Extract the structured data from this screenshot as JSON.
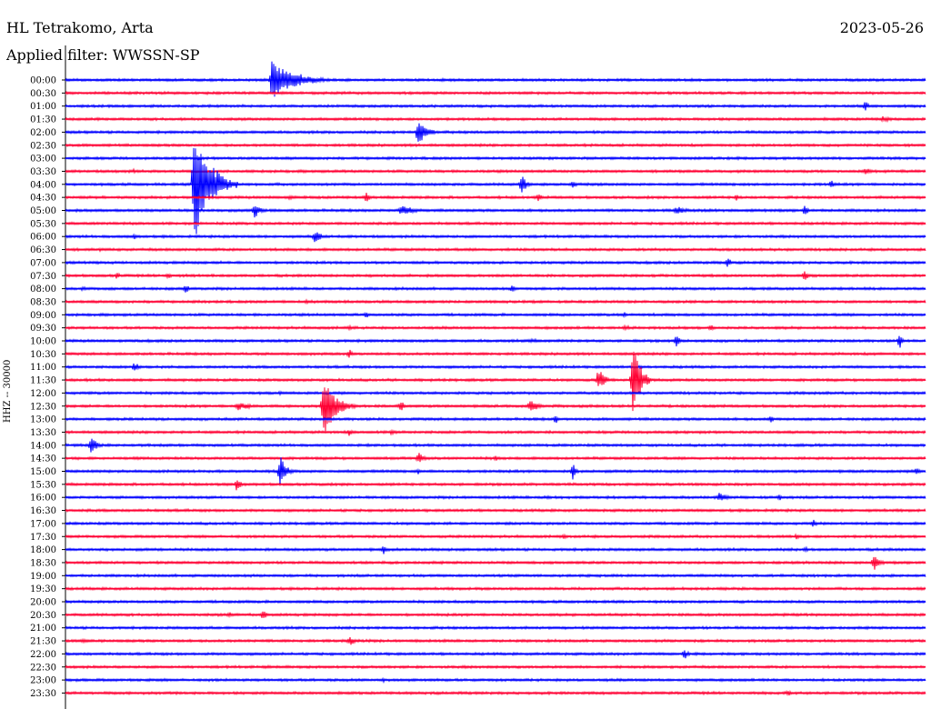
{
  "header": {
    "station": "HL Tetrakomo, Arta",
    "date": "2023-05-26",
    "filter": "Applied filter: WWSSN-SP"
  },
  "colors": {
    "blue": "#0000ff",
    "red": "#ff0033",
    "axis": "#000000"
  },
  "chart_data": {
    "type": "line",
    "title": "HL Tetrakomo, Arta",
    "subtitle": "Applied filter: WWSSN-SP",
    "ylabel": "HHZ -- 30000",
    "trace_duration_minutes": 30,
    "color_pattern": [
      "blue",
      "red"
    ],
    "y_tick_labels": [
      "00:00",
      "00:30",
      "01:00",
      "01:30",
      "02:00",
      "02:30",
      "03:00",
      "03:30",
      "04:00",
      "04:30",
      "05:00",
      "05:30",
      "06:00",
      "06:30",
      "07:00",
      "07:30",
      "08:00",
      "08:30",
      "09:00",
      "09:30",
      "10:00",
      "10:30",
      "11:00",
      "11:30",
      "12:00",
      "12:30",
      "13:00",
      "13:30",
      "14:00",
      "14:30",
      "15:00",
      "15:30",
      "16:00",
      "16:30",
      "17:00",
      "17:30",
      "18:00",
      "18:30",
      "19:00",
      "19:30",
      "20:00",
      "20:30",
      "21:00",
      "21:30",
      "22:00",
      "22:30",
      "23:00",
      "23:30"
    ],
    "events": [
      {
        "trace": "00:00",
        "t": 0.24,
        "amp": 28,
        "dur": 0.07,
        "dir": "up"
      },
      {
        "trace": "01:00",
        "t": 0.93,
        "amp": 8,
        "dur": 0.01
      },
      {
        "trace": "01:30",
        "t": 0.95,
        "amp": 4,
        "dur": 0.03
      },
      {
        "trace": "02:00",
        "t": 0.41,
        "amp": 18,
        "dur": 0.03
      },
      {
        "trace": "03:30",
        "t": 0.08,
        "amp": 3,
        "dur": 0.01
      },
      {
        "trace": "03:30",
        "t": 0.93,
        "amp": 5,
        "dur": 0.02
      },
      {
        "trace": "04:00",
        "t": 0.15,
        "amp": 80,
        "dur": 0.05,
        "dir": "big"
      },
      {
        "trace": "04:00",
        "t": 0.18,
        "amp": 12,
        "dur": 0.02
      },
      {
        "trace": "04:00",
        "t": 0.53,
        "amp": 12,
        "dur": 0.02
      },
      {
        "trace": "04:00",
        "t": 0.59,
        "amp": 6,
        "dur": 0.01
      },
      {
        "trace": "04:00",
        "t": 0.89,
        "amp": 6,
        "dur": 0.01
      },
      {
        "trace": "04:30",
        "t": 0.26,
        "amp": 3,
        "dur": 0.04
      },
      {
        "trace": "04:30",
        "t": 0.35,
        "amp": 8,
        "dur": 0.01
      },
      {
        "trace": "04:30",
        "t": 0.55,
        "amp": 6,
        "dur": 0.01
      },
      {
        "trace": "04:30",
        "t": 0.78,
        "amp": 5,
        "dur": 0.01
      },
      {
        "trace": "05:00",
        "t": 0.22,
        "amp": 10,
        "dur": 0.02
      },
      {
        "trace": "05:00",
        "t": 0.39,
        "amp": 8,
        "dur": 0.04
      },
      {
        "trace": "05:00",
        "t": 0.71,
        "amp": 6,
        "dur": 0.03
      },
      {
        "trace": "05:00",
        "t": 0.86,
        "amp": 8,
        "dur": 0.01
      },
      {
        "trace": "06:00",
        "t": 0.08,
        "amp": 4,
        "dur": 0.01
      },
      {
        "trace": "06:00",
        "t": 0.29,
        "amp": 9,
        "dur": 0.02
      },
      {
        "trace": "06:30",
        "t": 0.04,
        "amp": 2,
        "dur": 0.02
      },
      {
        "trace": "07:00",
        "t": 0.32,
        "amp": 3,
        "dur": 0.01
      },
      {
        "trace": "07:00",
        "t": 0.77,
        "amp": 8,
        "dur": 0.01
      },
      {
        "trace": "07:30",
        "t": 0.06,
        "amp": 5,
        "dur": 0.01
      },
      {
        "trace": "07:30",
        "t": 0.12,
        "amp": 5,
        "dur": 0.01
      },
      {
        "trace": "07:30",
        "t": 0.86,
        "amp": 9,
        "dur": 0.01
      },
      {
        "trace": "08:00",
        "t": 0.02,
        "amp": 3,
        "dur": 0.02
      },
      {
        "trace": "08:00",
        "t": 0.14,
        "amp": 6,
        "dur": 0.01
      },
      {
        "trace": "08:00",
        "t": 0.52,
        "amp": 5,
        "dur": 0.01
      },
      {
        "trace": "08:30",
        "t": 0.28,
        "amp": 3,
        "dur": 0.02
      },
      {
        "trace": "09:00",
        "t": 0.35,
        "amp": 5,
        "dur": 0.01
      },
      {
        "trace": "09:00",
        "t": 0.65,
        "amp": 4,
        "dur": 0.01
      },
      {
        "trace": "09:30",
        "t": 0.33,
        "amp": 4,
        "dur": 0.01
      },
      {
        "trace": "09:30",
        "t": 0.65,
        "amp": 5,
        "dur": 0.02
      },
      {
        "trace": "09:30",
        "t": 0.75,
        "amp": 5,
        "dur": 0.01
      },
      {
        "trace": "10:00",
        "t": 0.54,
        "amp": 3,
        "dur": 0.05
      },
      {
        "trace": "10:00",
        "t": 0.71,
        "amp": 9,
        "dur": 0.01
      },
      {
        "trace": "10:00",
        "t": 0.97,
        "amp": 10,
        "dur": 0.01
      },
      {
        "trace": "10:30",
        "t": 0.33,
        "amp": 7,
        "dur": 0.01
      },
      {
        "trace": "11:00",
        "t": 0.08,
        "amp": 6,
        "dur": 0.02
      },
      {
        "trace": "11:30",
        "t": 0.62,
        "amp": 16,
        "dur": 0.02
      },
      {
        "trace": "11:30",
        "t": 0.66,
        "amp": 70,
        "dur": 0.02,
        "dir": "big"
      },
      {
        "trace": "12:00",
        "t": 0.25,
        "amp": 3,
        "dur": 0.01
      },
      {
        "trace": "12:30",
        "t": 0.2,
        "amp": 6,
        "dur": 0.05
      },
      {
        "trace": "12:30",
        "t": 0.3,
        "amp": 40,
        "dur": 0.04,
        "dir": "big"
      },
      {
        "trace": "12:30",
        "t": 0.39,
        "amp": 8,
        "dur": 0.01
      },
      {
        "trace": "12:30",
        "t": 0.54,
        "amp": 8,
        "dur": 0.03
      },
      {
        "trace": "13:00",
        "t": 0.57,
        "amp": 6,
        "dur": 0.01
      },
      {
        "trace": "13:00",
        "t": 0.82,
        "amp": 6,
        "dur": 0.01
      },
      {
        "trace": "13:30",
        "t": 0.33,
        "amp": 6,
        "dur": 0.01
      },
      {
        "trace": "13:30",
        "t": 0.38,
        "amp": 5,
        "dur": 0.01
      },
      {
        "trace": "14:00",
        "t": 0.03,
        "amp": 12,
        "dur": 0.02
      },
      {
        "trace": "14:30",
        "t": 0.41,
        "amp": 8,
        "dur": 0.02
      },
      {
        "trace": "14:30",
        "t": 0.5,
        "amp": 4,
        "dur": 0.01
      },
      {
        "trace": "15:00",
        "t": 0.25,
        "amp": 20,
        "dur": 0.02
      },
      {
        "trace": "15:00",
        "t": 0.41,
        "amp": 4,
        "dur": 0.01
      },
      {
        "trace": "15:00",
        "t": 0.59,
        "amp": 12,
        "dur": 0.01
      },
      {
        "trace": "15:00",
        "t": 0.99,
        "amp": 6,
        "dur": 0.01
      },
      {
        "trace": "15:30",
        "t": 0.2,
        "amp": 10,
        "dur": 0.01
      },
      {
        "trace": "16:00",
        "t": 0.56,
        "amp": 3,
        "dur": 0.02
      },
      {
        "trace": "16:00",
        "t": 0.76,
        "amp": 7,
        "dur": 0.03
      },
      {
        "trace": "16:00",
        "t": 0.83,
        "amp": 5,
        "dur": 0.01
      },
      {
        "trace": "17:00",
        "t": 0.87,
        "amp": 6,
        "dur": 0.01
      },
      {
        "trace": "17:30",
        "t": 0.58,
        "amp": 4,
        "dur": 0.01
      },
      {
        "trace": "17:30",
        "t": 0.85,
        "amp": 4,
        "dur": 0.01
      },
      {
        "trace": "18:00",
        "t": 0.37,
        "amp": 6,
        "dur": 0.01
      },
      {
        "trace": "18:00",
        "t": 0.86,
        "amp": 4,
        "dur": 0.01
      },
      {
        "trace": "18:30",
        "t": 0.94,
        "amp": 10,
        "dur": 0.02
      },
      {
        "trace": "20:30",
        "t": 0.19,
        "amp": 4,
        "dur": 0.02
      },
      {
        "trace": "20:30",
        "t": 0.23,
        "amp": 10,
        "dur": 0.01
      },
      {
        "trace": "21:30",
        "t": 0.02,
        "amp": 3,
        "dur": 0.03
      },
      {
        "trace": "21:30",
        "t": 0.33,
        "amp": 6,
        "dur": 0.02
      },
      {
        "trace": "22:00",
        "t": 0.72,
        "amp": 8,
        "dur": 0.01
      },
      {
        "trace": "23:00",
        "t": 0.37,
        "amp": 3,
        "dur": 0.01
      },
      {
        "trace": "23:30",
        "t": 0.84,
        "amp": 5,
        "dur": 0.01
      }
    ]
  }
}
